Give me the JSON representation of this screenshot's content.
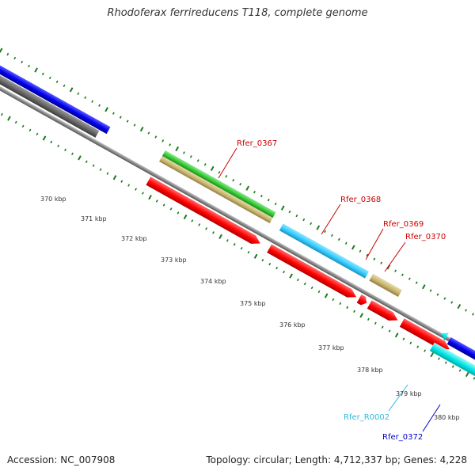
{
  "title": "Rhodoferax ferrireducens T118, complete genome",
  "footer": {
    "accession": "Accession: NC_007908",
    "topology": "Topology: circular; Length: 4,712,337 bp; Genes: 4,228"
  },
  "scale_labels": [
    "370 kbp",
    "371 kbp",
    "372 kbp",
    "373 kbp",
    "374 kbp",
    "375 kbp",
    "376 kbp",
    "377 kbp",
    "378 kbp",
    "379 kbp",
    "380 kbp"
  ],
  "gene_labels": {
    "rfer_0367": "Rfer_0367",
    "rfer_0368": "Rfer_0368",
    "rfer_0369": "Rfer_0369",
    "rfer_0370": "Rfer_0370",
    "rfer_r0002": "Rfer_R0002",
    "rfer_0372": "Rfer_0372"
  },
  "colors": {
    "label_red": "#cc0000",
    "label_cyan": "#33bbdd",
    "label_blue": "#0000cc",
    "tick_green": "#1a7a1a",
    "backbone": "#888888",
    "cds_red": "#ff0000",
    "cds_blue": "#0000ee",
    "cds_cyan": "#33ccff",
    "cds_teal": "#00e5e5",
    "cds_gray": "#666666",
    "cds_green": "#33cc33",
    "cds_khaki": "#c8b46e"
  }
}
